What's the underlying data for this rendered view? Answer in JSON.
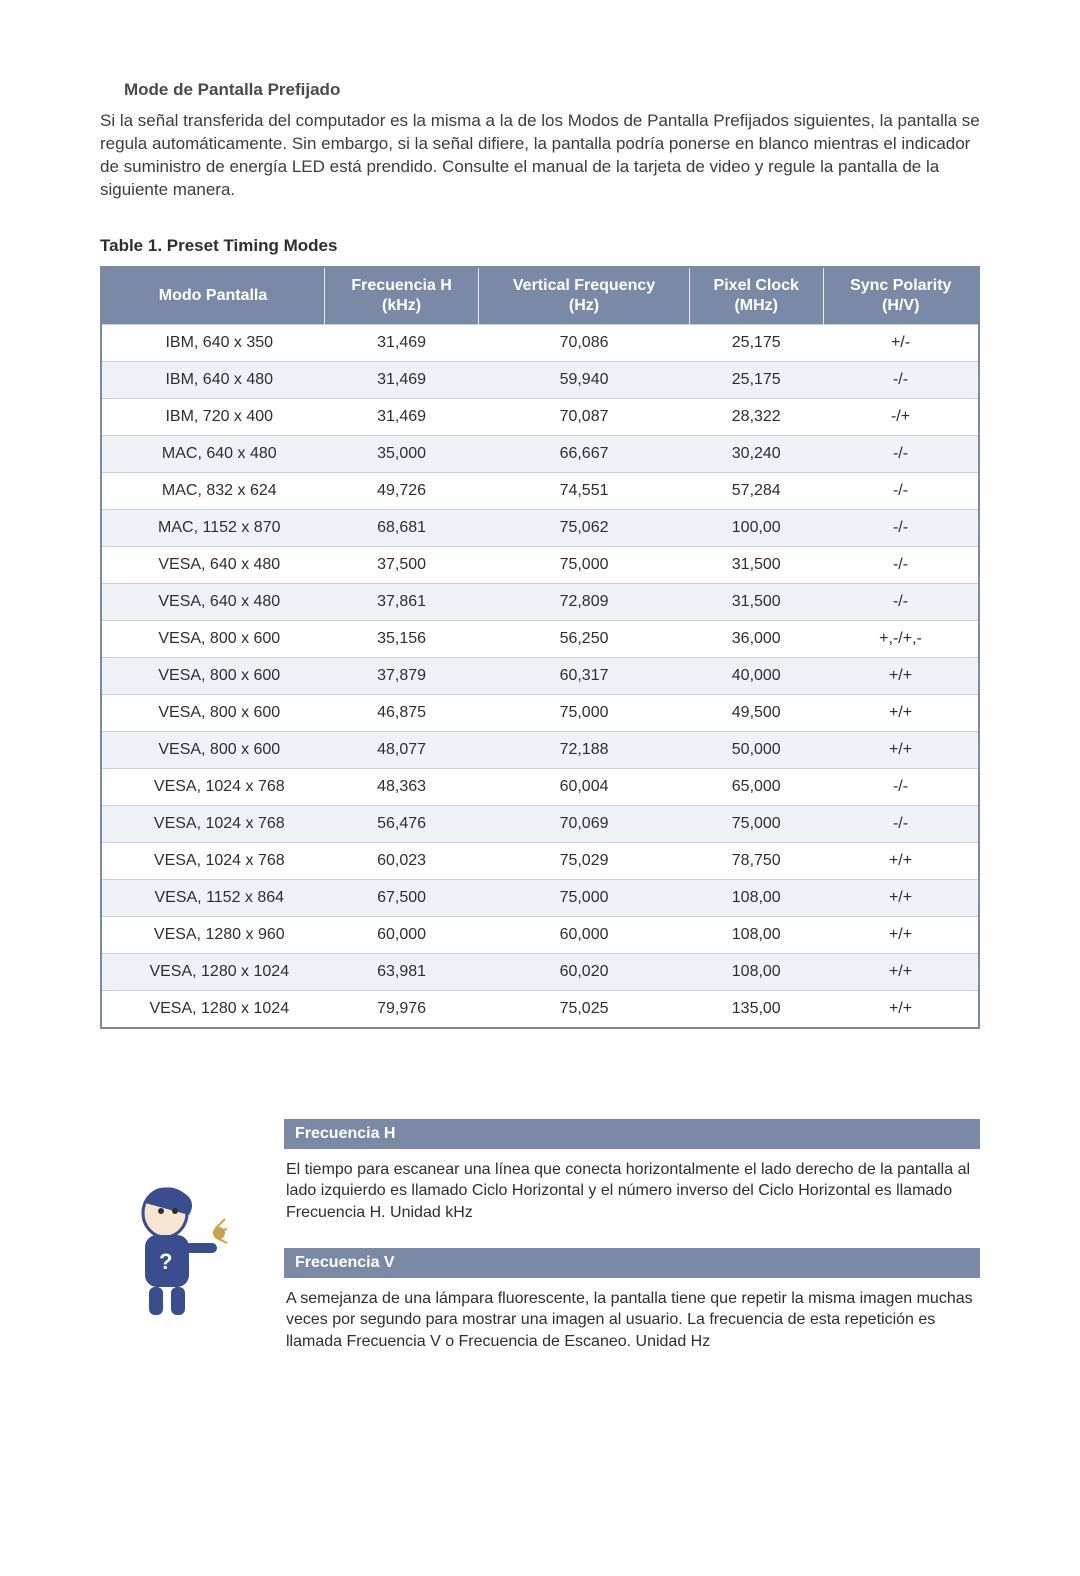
{
  "heading": "Mode de Pantalla Prefijado",
  "intro": "Si la señal transferida del computador es la misma a la de los Modos de Pantalla Prefijados siguientes, la pantalla se regula automáticamente. Sin embargo, si la señal difiere, la pantalla podría ponerse en blanco mientras el indicador de suministro de energía LED está prendido. Consulte el manual de la tarjeta de video y regule la pantalla de la siguiente manera.",
  "table_caption": "Table 1. Preset Timing Modes",
  "table": {
    "type": "table",
    "header_bg": "#7a8aa6",
    "header_fg": "#ffffff",
    "row_alt_bg": "#eef1f6",
    "border_color": "#7a8aa6",
    "grid_color": "#c9d1de",
    "font_size": 16,
    "columns": [
      "Modo Pantalla",
      "Frecuencia H (kHz)",
      "Vertical Frequency (Hz)",
      "Pixel Clock (MHz)",
      "Sync Polarity (H/V)"
    ],
    "rows": [
      [
        "IBM, 640 x 350",
        "31,469",
        "70,086",
        "25,175",
        "+/-"
      ],
      [
        "IBM, 640 x 480",
        "31,469",
        "59,940",
        "25,175",
        "-/-"
      ],
      [
        "IBM, 720 x 400",
        "31,469",
        "70,087",
        "28,322",
        "-/+"
      ],
      [
        "MAC, 640 x 480",
        "35,000",
        "66,667",
        "30,240",
        "-/-"
      ],
      [
        "MAC, 832 x 624",
        "49,726",
        "74,551",
        "57,284",
        "-/-"
      ],
      [
        "MAC, 1152 x 870",
        "68,681",
        "75,062",
        "100,00",
        "-/-"
      ],
      [
        "VESA, 640 x 480",
        "37,500",
        "75,000",
        "31,500",
        "-/-"
      ],
      [
        "VESA, 640 x 480",
        "37,861",
        "72,809",
        "31,500",
        "-/-"
      ],
      [
        "VESA, 800 x 600",
        "35,156",
        "56,250",
        "36,000",
        "+,-/+,-"
      ],
      [
        "VESA, 800 x 600",
        "37,879",
        "60,317",
        "40,000",
        "+/+"
      ],
      [
        "VESA, 800 x 600",
        "46,875",
        "75,000",
        "49,500",
        "+/+"
      ],
      [
        "VESA, 800 x 600",
        "48,077",
        "72,188",
        "50,000",
        "+/+"
      ],
      [
        "VESA, 1024 x 768",
        "48,363",
        "60,004",
        "65,000",
        "-/-"
      ],
      [
        "VESA, 1024 x 768",
        "56,476",
        "70,069",
        "75,000",
        "-/-"
      ],
      [
        "VESA, 1024 x 768",
        "60,023",
        "75,029",
        "78,750",
        "+/+"
      ],
      [
        "VESA, 1152 x 864",
        "67,500",
        "75,000",
        "108,00",
        "+/+"
      ],
      [
        "VESA, 1280 x 960",
        "60,000",
        "60,000",
        "108,00",
        "+/+"
      ],
      [
        "VESA, 1280 x 1024",
        "63,981",
        "60,020",
        "108,00",
        "+/+"
      ],
      [
        "VESA, 1280 x 1024",
        "79,976",
        "75,025",
        "135,00",
        "+/+"
      ]
    ]
  },
  "definitions": [
    {
      "title": "Frecuencia H",
      "text": "El tiempo para escanear una línea que conecta horizontalmente el lado derecho de la pantalla al lado izquierdo es llamado Ciclo Horizontal y el número inverso del Ciclo Horizontal es llamado Frecuencia H. Unidad kHz"
    },
    {
      "title": "Frecuencia V",
      "text": "A semejanza de una lámpara fluorescente, la pantalla tiene que repetir la misma imagen muchas veces por segundo para mostrar una imagen al usuario. La frecuencia de esta repetición es llamada Frecuencia V o Frecuencia de Escaneo. Unidad Hz"
    }
  ],
  "icon_name": "info-character-icon",
  "colors": {
    "text": "#2e2e2e",
    "icon_primary": "#3a4d8f",
    "icon_accent": "#c9a24a",
    "icon_light": "#f3f3f3"
  }
}
